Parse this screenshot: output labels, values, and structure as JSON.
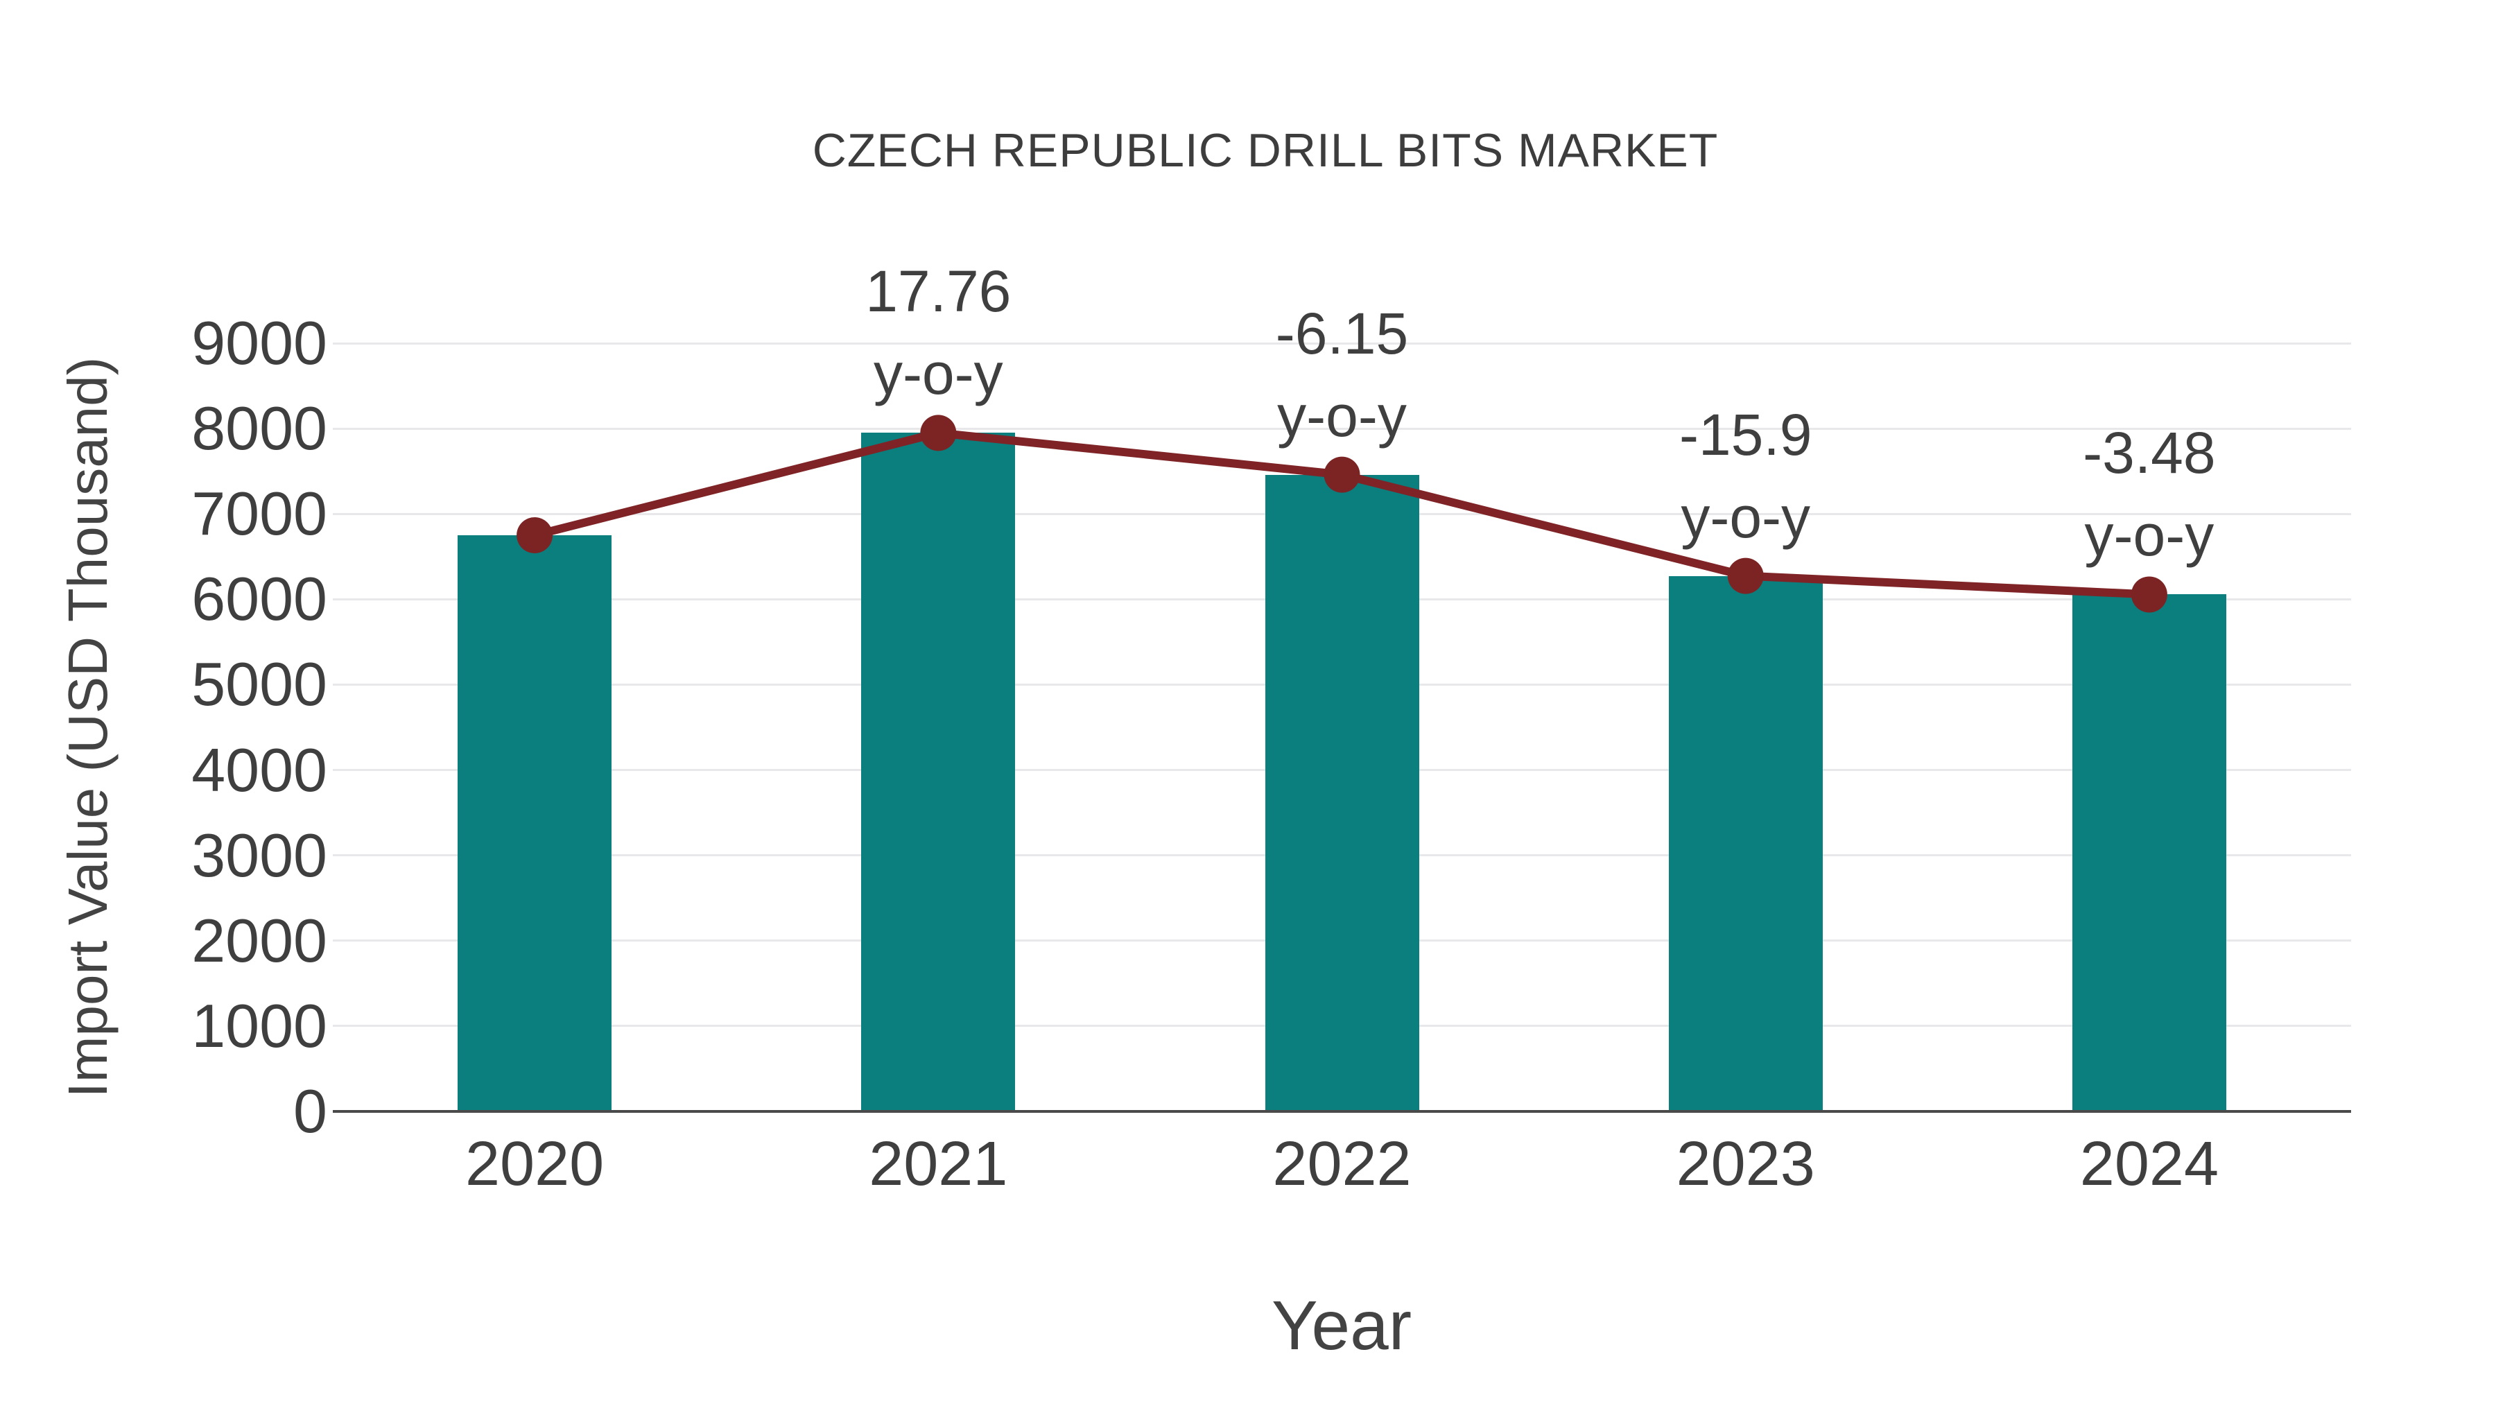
{
  "chart_data": {
    "type": "bar",
    "title": "CZECH REPUBLIC DRILL BITS MARKET",
    "xlabel": "Year",
    "ylabel": "Import Value (USD Thousand)",
    "categories": [
      "2020",
      "2021",
      "2022",
      "2023",
      "2024"
    ],
    "series": [
      {
        "name": "import-value-bars",
        "type": "bar",
        "values": [
          6750,
          7949,
          7460,
          6274,
          6056
        ]
      },
      {
        "name": "import-value-trend-line",
        "type": "line",
        "values": [
          6750,
          7949,
          7460,
          6274,
          6056
        ]
      }
    ],
    "annotations": [
      {
        "category": "2021",
        "value": "17.76",
        "suffix": "y-o-y"
      },
      {
        "category": "2022",
        "value": "-6.15",
        "suffix": "y-o-y"
      },
      {
        "category": "2023",
        "value": "-15.9",
        "suffix": "y-o-y"
      },
      {
        "category": "2024",
        "value": "-3.48",
        "suffix": "y-o-y"
      }
    ],
    "ylim": [
      0,
      9000
    ],
    "yticks": [
      0,
      1000,
      2000,
      3000,
      4000,
      5000,
      6000,
      7000,
      8000,
      9000
    ],
    "grid": true,
    "legend_position": "none",
    "colors": {
      "bar": "#0b7e7e",
      "line": "#7f2326",
      "marker": "#7c2424",
      "text": "#3f3f3f",
      "grid": "#e8e8ea",
      "axis": "#4a4a4a",
      "background": "#ffffff"
    }
  }
}
